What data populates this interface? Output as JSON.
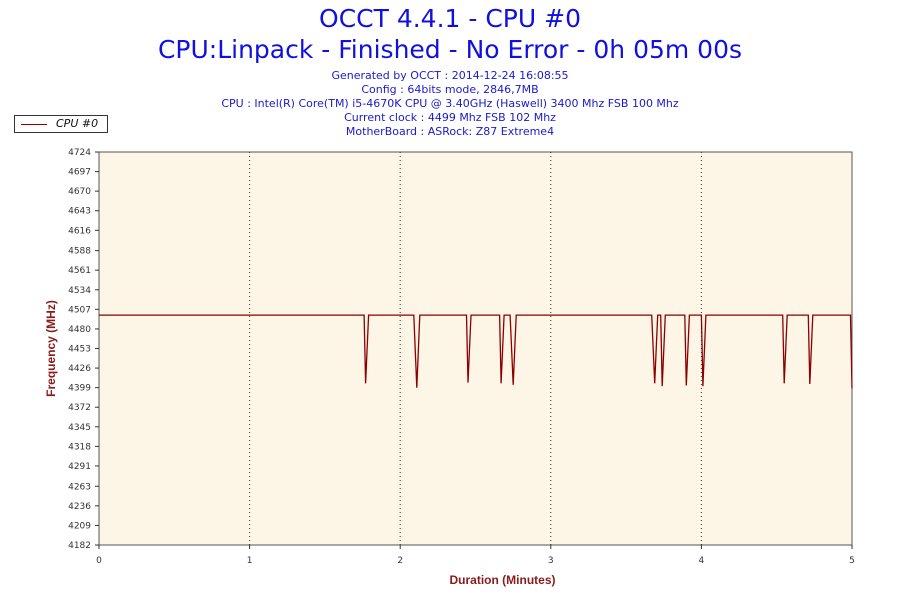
{
  "header": {
    "title": "OCCT 4.4.1 - CPU #0",
    "subtitle": "CPU:Linpack - Finished - No Error - 0h 05m 00s",
    "info_lines": [
      "Generated by OCCT : 2014-12-24 16:08:55",
      "Config : 64bits mode, 2846,7MB",
      "CPU : Intel(R) Core(TM) i5-4670K CPU @ 3.40GHz (Haswell) 3400 Mhz FSB 100 Mhz",
      "Current clock : 4499 Mhz FSB 102 Mhz",
      "MotherBoard : ASRock: Z87 Extreme4"
    ]
  },
  "legend": {
    "label": "CPU #0",
    "color": "#8b0000"
  },
  "colors": {
    "plot_background": "#fdf5e6",
    "line": "#8b0000",
    "grid": "#333333",
    "title": "#1010e0",
    "axis_title": "#8b1a1a"
  },
  "chart_data": {
    "type": "line",
    "xlabel": "Duration (Minutes)",
    "ylabel": "Frequency (MHz)",
    "xlim": [
      0,
      5
    ],
    "ylim": [
      4182,
      4724
    ],
    "x_ticks": [
      "0",
      "1",
      "2",
      "3",
      "4",
      "5"
    ],
    "y_ticks": [
      "4724",
      "4697",
      "4670",
      "4643",
      "4616",
      "4588",
      "4561",
      "4534",
      "4507",
      "4480",
      "4453",
      "4426",
      "4399",
      "4372",
      "4345",
      "4318",
      "4291",
      "4263",
      "4236",
      "4209",
      "4182"
    ],
    "grid": {
      "x": true,
      "y": false,
      "style": "dotted"
    },
    "legend_position": "top-left",
    "series": [
      {
        "name": "CPU #0",
        "baseline": 4499,
        "points": [
          [
            0.0,
            4499
          ],
          [
            1.74,
            4499
          ],
          [
            1.76,
            4499
          ],
          [
            1.77,
            4405
          ],
          [
            1.79,
            4499
          ],
          [
            1.82,
            4499
          ],
          [
            2.07,
            4499
          ],
          [
            2.09,
            4499
          ],
          [
            2.11,
            4399
          ],
          [
            2.13,
            4499
          ],
          [
            2.16,
            4499
          ],
          [
            2.42,
            4499
          ],
          [
            2.44,
            4499
          ],
          [
            2.45,
            4406
          ],
          [
            2.47,
            4499
          ],
          [
            2.49,
            4499
          ],
          [
            2.64,
            4499
          ],
          [
            2.66,
            4499
          ],
          [
            2.67,
            4405
          ],
          [
            2.69,
            4499
          ],
          [
            2.73,
            4499
          ],
          [
            2.75,
            4403
          ],
          [
            2.77,
            4499
          ],
          [
            2.8,
            4499
          ],
          [
            3.65,
            4499
          ],
          [
            3.67,
            4499
          ],
          [
            3.69,
            4405
          ],
          [
            3.71,
            4499
          ],
          [
            3.73,
            4499
          ],
          [
            3.74,
            4401
          ],
          [
            3.76,
            4499
          ],
          [
            3.79,
            4499
          ],
          [
            3.87,
            4499
          ],
          [
            3.89,
            4499
          ],
          [
            3.9,
            4402
          ],
          [
            3.92,
            4499
          ],
          [
            3.95,
            4499
          ],
          [
            3.99,
            4499
          ],
          [
            4.0,
            4499
          ],
          [
            4.01,
            4401
          ],
          [
            4.03,
            4499
          ],
          [
            4.06,
            4499
          ],
          [
            4.52,
            4499
          ],
          [
            4.54,
            4499
          ],
          [
            4.55,
            4405
          ],
          [
            4.57,
            4499
          ],
          [
            4.6,
            4499
          ],
          [
            4.7,
            4499
          ],
          [
            4.71,
            4499
          ],
          [
            4.72,
            4404
          ],
          [
            4.74,
            4499
          ],
          [
            4.77,
            4499
          ],
          [
            4.98,
            4499
          ],
          [
            4.99,
            4499
          ],
          [
            5.0,
            4398
          ]
        ]
      }
    ]
  }
}
